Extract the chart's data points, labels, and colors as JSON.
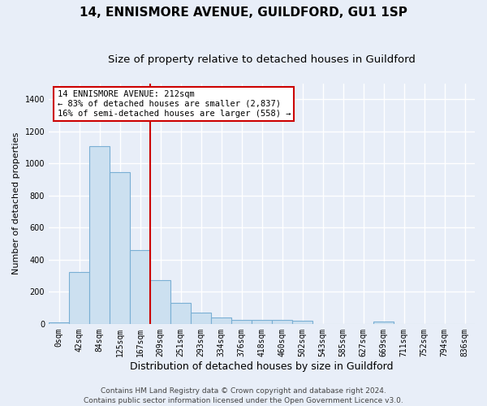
{
  "title": "14, ENNISMORE AVENUE, GUILDFORD, GU1 1SP",
  "subtitle": "Size of property relative to detached houses in Guildford",
  "xlabel": "Distribution of detached houses by size in Guildford",
  "ylabel": "Number of detached properties",
  "footer_line1": "Contains HM Land Registry data © Crown copyright and database right 2024.",
  "footer_line2": "Contains public sector information licensed under the Open Government Licence v3.0.",
  "bar_labels": [
    "0sqm",
    "42sqm",
    "84sqm",
    "125sqm",
    "167sqm",
    "209sqm",
    "251sqm",
    "293sqm",
    "334sqm",
    "376sqm",
    "418sqm",
    "460sqm",
    "502sqm",
    "543sqm",
    "585sqm",
    "627sqm",
    "669sqm",
    "711sqm",
    "752sqm",
    "794sqm",
    "836sqm"
  ],
  "bar_values": [
    8,
    325,
    1110,
    945,
    460,
    275,
    130,
    70,
    42,
    25,
    25,
    25,
    18,
    0,
    0,
    0,
    12,
    0,
    0,
    0,
    0
  ],
  "bar_color": "#cce0f0",
  "bar_edge_color": "#7aafd4",
  "vline_color": "#cc0000",
  "annotation_text": "14 ENNISMORE AVENUE: 212sqm\n← 83% of detached houses are smaller (2,837)\n16% of semi-detached houses are larger (558) →",
  "annotation_box_color": "#ffffff",
  "annotation_box_edge": "#cc0000",
  "ylim": [
    0,
    1500
  ],
  "yticks": [
    0,
    200,
    400,
    600,
    800,
    1000,
    1200,
    1400
  ],
  "bg_color": "#e8eef8",
  "plot_bg_color": "#e8eef8",
  "grid_color": "#ffffff",
  "title_fontsize": 11,
  "subtitle_fontsize": 9.5,
  "xlabel_fontsize": 9,
  "ylabel_fontsize": 8,
  "tick_fontsize": 7,
  "footer_fontsize": 6.5,
  "annotation_fontsize": 7.5
}
